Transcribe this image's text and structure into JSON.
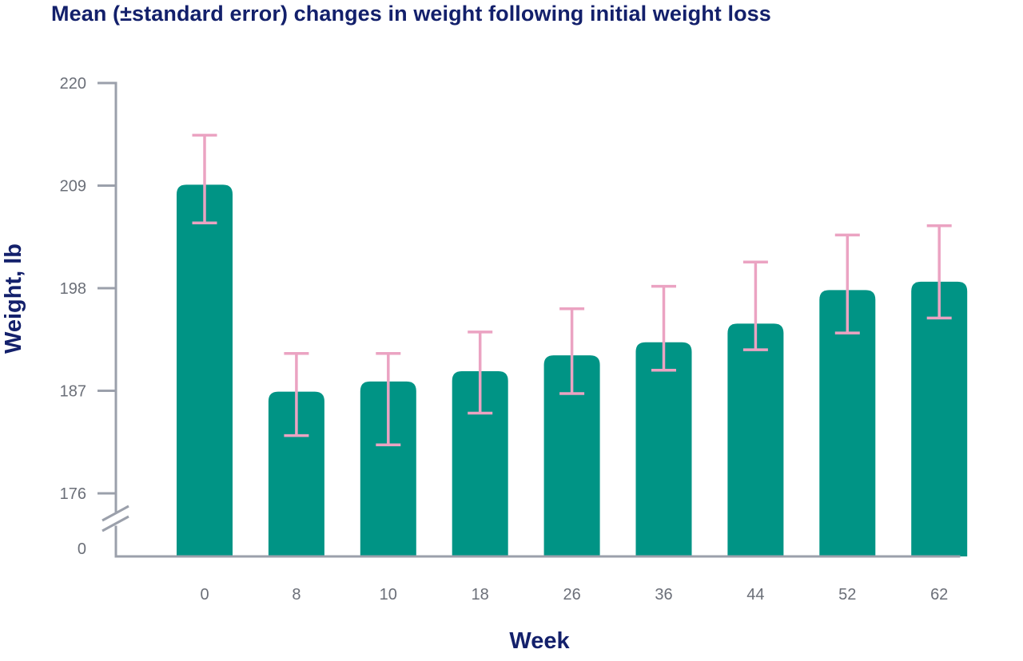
{
  "chart_data": {
    "type": "bar",
    "title": "Mean (±standard error) changes in weight following initial weight loss",
    "xlabel": "Week",
    "ylabel": "Weight, lb",
    "categories": [
      "0",
      "8",
      "10",
      "18",
      "26",
      "36",
      "44",
      "52",
      "62"
    ],
    "series": [
      {
        "values": [
          209.1,
          186.9,
          188.0,
          189.1,
          190.8,
          192.2,
          194.2,
          197.8,
          198.7
        ],
        "error_low": [
          205.0,
          182.2,
          181.2,
          184.6,
          186.7,
          189.2,
          191.4,
          193.2,
          194.8
        ],
        "error_high": [
          214.4,
          191.0,
          191.0,
          193.3,
          195.8,
          198.2,
          200.8,
          203.7,
          204.7
        ]
      }
    ],
    "y_axis": {
      "ticks": [
        220,
        209,
        198,
        187,
        176
      ],
      "bottom_tick": 0,
      "axis_break": true,
      "range": [
        176,
        220
      ]
    },
    "grid": false,
    "legend": "none",
    "colors": {
      "bar": "#009485",
      "error_bar": "#eba3c2",
      "axis": "#9ba0ab",
      "tick_text": "#6b6f78",
      "title": "#13206b"
    }
  }
}
